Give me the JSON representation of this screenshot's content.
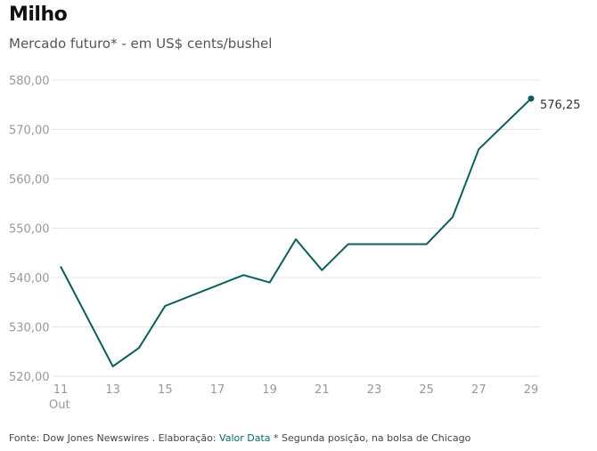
{
  "chart_data": {
    "type": "line",
    "title": "Milho",
    "subtitle": "Mercado futuro* - em US$ cents/bushel",
    "x": [
      11,
      13,
      14,
      15,
      18,
      19,
      20,
      21,
      22,
      25,
      26,
      27,
      29
    ],
    "values": [
      542.25,
      522.0,
      525.75,
      534.25,
      540.5,
      539.0,
      547.75,
      541.5,
      546.75,
      546.75,
      552.25,
      566.0,
      576.25
    ],
    "x_ticks": [
      "11",
      "13",
      "15",
      "17",
      "19",
      "21",
      "23",
      "25",
      "27",
      "29"
    ],
    "x_month_label": "Out",
    "y_ticks": [
      "520,00",
      "530,00",
      "540,00",
      "550,00",
      "560,00",
      "570,00",
      "580,00"
    ],
    "ylim": [
      520,
      580
    ],
    "xlim": [
      11,
      29
    ],
    "last_value_label": "576,25",
    "grid": true,
    "line_color": "#0b5e5a"
  },
  "footer": {
    "source": "Fonte: Dow Jones Newswires . Elaboração: ",
    "link": "Valor Data",
    "note": " * Segunda posição, na bolsa de Chicago"
  }
}
